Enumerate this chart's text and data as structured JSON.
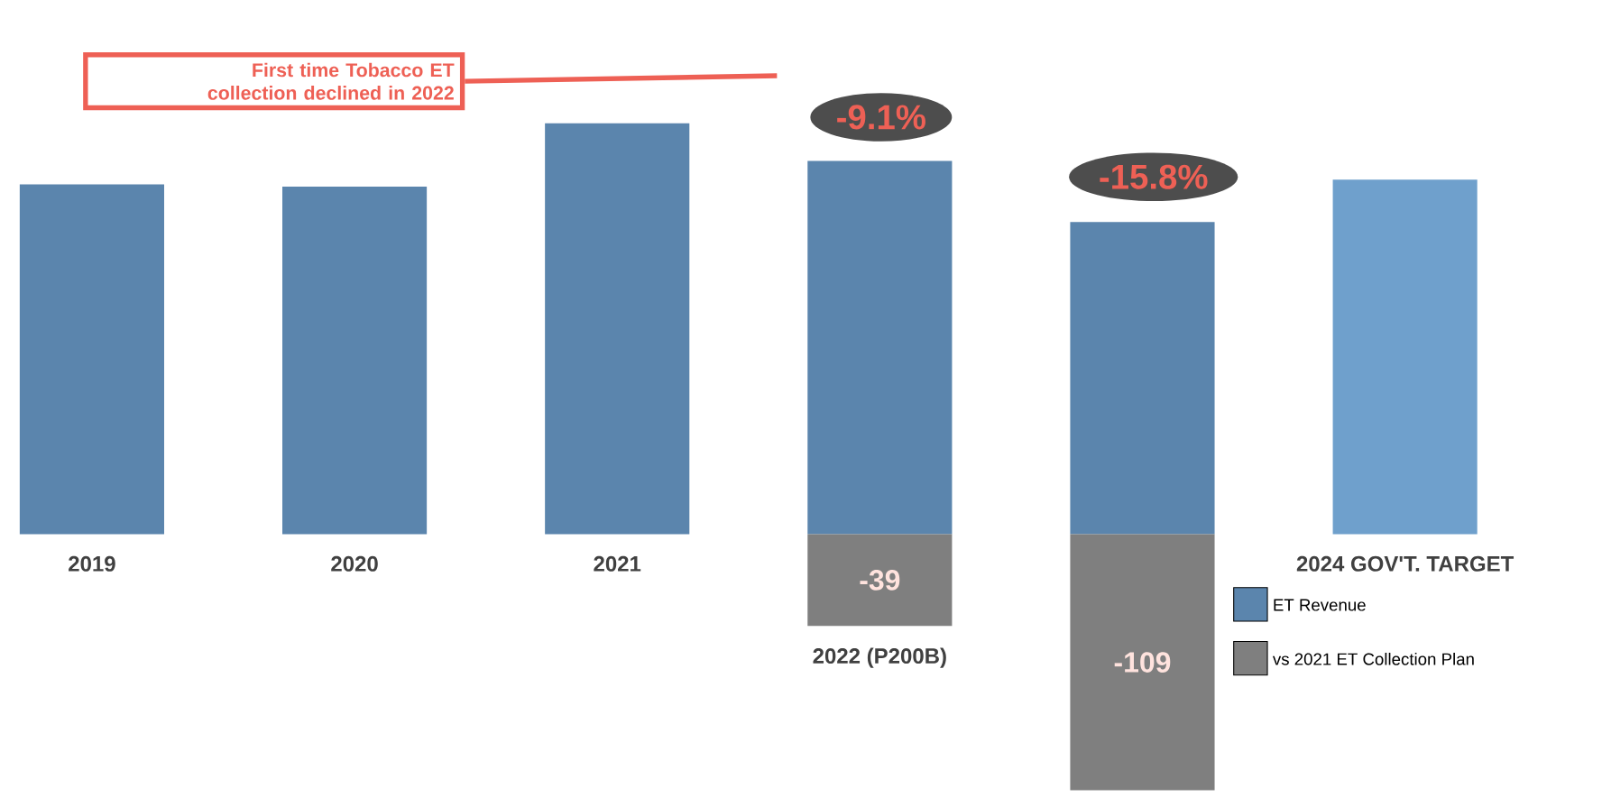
{
  "chart_data": {
    "type": "bar",
    "stacked": true,
    "categories": [
      "2019",
      "2020",
      "2021",
      "2022 (P200B)",
      null,
      "2024  GOV'T. TARGET"
    ],
    "series": [
      {
        "name": "ET Revenue",
        "colors": [
          "#5b85ad",
          "#5b85ad",
          "#5b85ad",
          "#5b85ad",
          "#5b85ad",
          "#6fa0cc"
        ],
        "values": [
          149,
          148,
          175,
          159,
          133,
          151
        ]
      },
      {
        "name": "vs 2021 ET Collection Plan",
        "color": "#7f7f7f",
        "values": [
          null,
          null,
          null,
          -39,
          -109,
          null
        ],
        "value_labels": [
          null,
          null,
          null,
          "-39",
          "-109",
          null
        ]
      }
    ],
    "legend": "bottom right",
    "annotations": [
      "First time Tobacco ET collection declined in 2022",
      "-9.1%",
      "-15.8%"
    ]
  }
}
